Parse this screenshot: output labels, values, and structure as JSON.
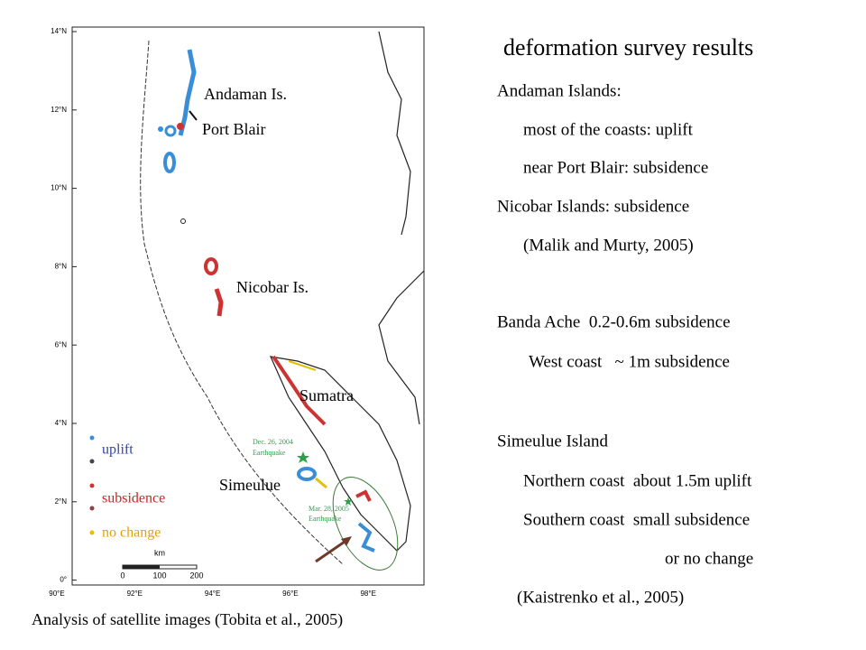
{
  "map": {
    "lat_labels": [
      "14°N",
      "12°N",
      "10°N",
      "8°N",
      "6°N",
      "4°N",
      "2°N",
      "0°"
    ],
    "lon_labels": [
      "90°E",
      "92°E",
      "94°E",
      "96°E",
      "98°E"
    ],
    "places": [
      "Andaman Is.",
      "Port Blair",
      "Nicobar Is.",
      "Sumatra",
      "Simeulue"
    ],
    "events": [
      "Dec. 26, 2004",
      "Earthquake",
      "Mar. 28, 2005",
      "Earthquake"
    ],
    "scale": {
      "unit": "km",
      "ticks": [
        0,
        100,
        200
      ]
    },
    "legend": [
      "uplift",
      "subsidence",
      "no change"
    ],
    "caption": "Analysis of satellite images (Tobita et al., 2005)"
  },
  "panel": {
    "title": "deformation survey results",
    "lines": [
      "Andaman Islands:",
      "most of the coasts: uplift",
      "near Port Blair: subsidence",
      "Nicobar Islands: subsidence",
      "(Malik and Murty, 2005)",
      "Banda Ache  0.2-0.6m subsidence",
      "West coast   ~ 1m subsidence",
      "Simeulue Island",
      "Northern coast  about 1.5m uplift",
      "Southern coast  small subsidence",
      "or no change",
      "(Kaistrenko et al., 2005)"
    ]
  }
}
